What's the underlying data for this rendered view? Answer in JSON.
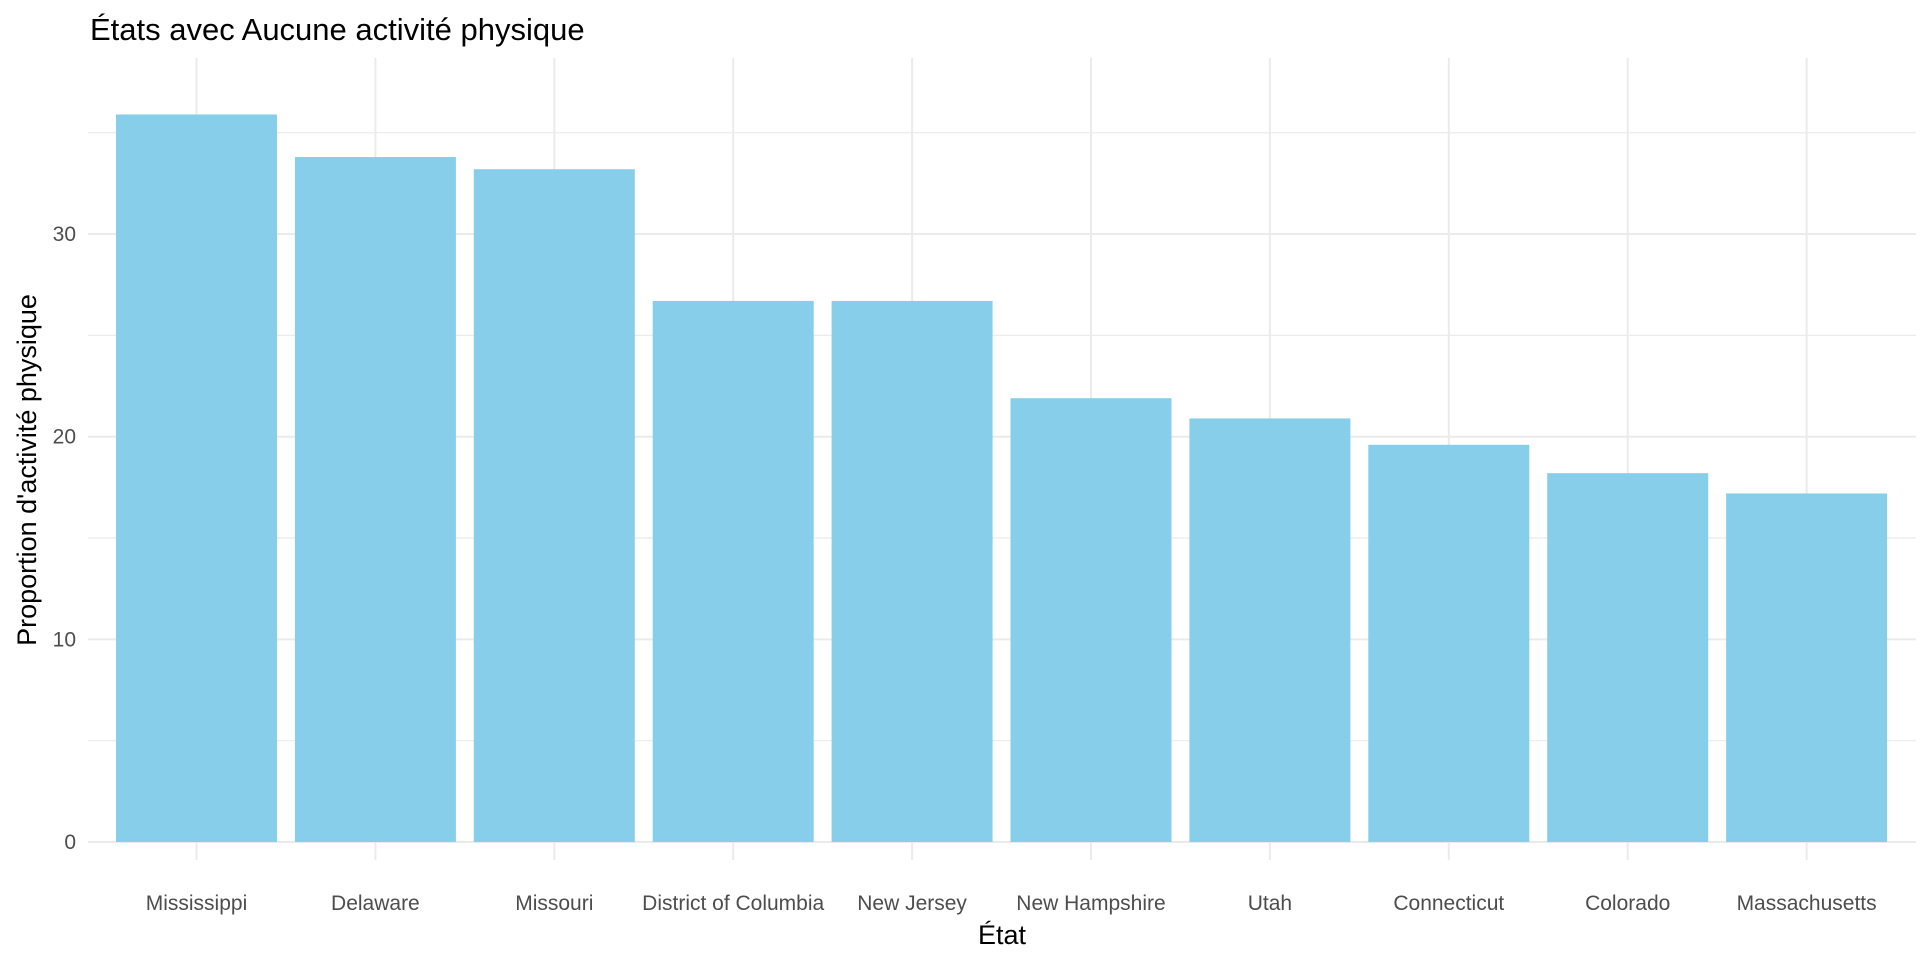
{
  "chart_data": {
    "type": "bar",
    "title": "États avec Aucune activité physique",
    "xlabel": "État",
    "ylabel": "Proportion d'activité physique",
    "categories": [
      "Mississippi",
      "Delaware",
      "Missouri",
      "District of Columbia",
      "New Jersey",
      "New Hampshire",
      "Utah",
      "Connecticut",
      "Colorado",
      "Massachusetts"
    ],
    "values": [
      35.9,
      33.8,
      33.2,
      26.7,
      26.7,
      21.9,
      20.9,
      19.6,
      18.2,
      17.2
    ],
    "yticks": [
      0,
      10,
      20,
      30
    ],
    "ylim": [
      0,
      37.7
    ],
    "grid": true,
    "legend": "none",
    "bar_color": "#87CEEB",
    "gridline_color": "#EBEBEB"
  }
}
